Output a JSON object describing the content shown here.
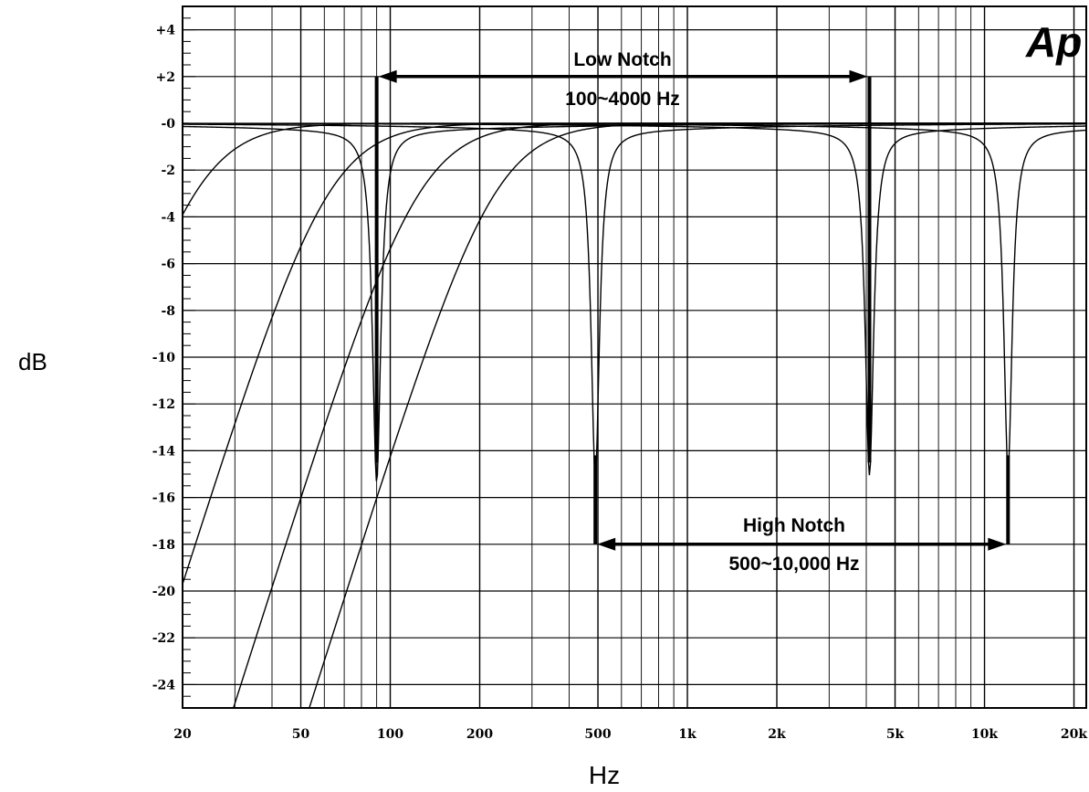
{
  "logo_text": "Ap",
  "chart_data": {
    "type": "line",
    "xlabel": "Hz",
    "ylabel": "dB",
    "xscale": "log",
    "xlim": [
      20,
      22000
    ],
    "ylim": [
      -25,
      5
    ],
    "grid": true,
    "x_ticks": [
      {
        "v": 20,
        "label": "20"
      },
      {
        "v": 50,
        "label": "50"
      },
      {
        "v": 100,
        "label": "100"
      },
      {
        "v": 200,
        "label": "200"
      },
      {
        "v": 500,
        "label": "500"
      },
      {
        "v": 1000,
        "label": "1k"
      },
      {
        "v": 2000,
        "label": "2k"
      },
      {
        "v": 5000,
        "label": "5k"
      },
      {
        "v": 10000,
        "label": "10k"
      },
      {
        "v": 20000,
        "label": "20k"
      }
    ],
    "y_ticks": [
      {
        "v": 4,
        "label": "+4"
      },
      {
        "v": 2,
        "label": "+2"
      },
      {
        "v": 0,
        "label": "-0"
      },
      {
        "v": -2,
        "label": "-2"
      },
      {
        "v": -4,
        "label": "-4"
      },
      {
        "v": -6,
        "label": "-6"
      },
      {
        "v": -8,
        "label": "-8"
      },
      {
        "v": -10,
        "label": "-10"
      },
      {
        "v": -12,
        "label": "-12"
      },
      {
        "v": -14,
        "label": "-14"
      },
      {
        "v": -16,
        "label": "-16"
      },
      {
        "v": -18,
        "label": "-18"
      },
      {
        "v": -20,
        "label": "-20"
      },
      {
        "v": -22,
        "label": "-22"
      },
      {
        "v": -24,
        "label": "-24"
      }
    ],
    "series": [
      {
        "kind": "notch",
        "center": 90,
        "depth": -15,
        "width": 0.08
      },
      {
        "kind": "notch",
        "center": 490,
        "depth": -14.8,
        "width": 0.08
      },
      {
        "kind": "notch",
        "center": 4100,
        "depth": -14.7,
        "width": 0.08
      },
      {
        "kind": "notch",
        "center": 12000,
        "depth": -14.5,
        "width": 0.08
      },
      {
        "kind": "highpass",
        "fc": 22,
        "order": 2
      },
      {
        "kind": "highpass",
        "fc": 62,
        "order": 2
      },
      {
        "kind": "highpass",
        "fc": 125,
        "order": 2
      },
      {
        "kind": "highpass",
        "fc": 225,
        "order": 2
      }
    ],
    "annotations": [
      {
        "id": "low",
        "title": "Low Notch",
        "range": "100~4000 Hz",
        "x1": 90,
        "x2": 4100,
        "y": 2,
        "drop_to": -14.5
      },
      {
        "id": "high",
        "title": "High Notch",
        "range": "500~10,000 Hz",
        "x1": 490,
        "x2": 12000,
        "y": -18,
        "drop_to": -14.2
      }
    ]
  }
}
